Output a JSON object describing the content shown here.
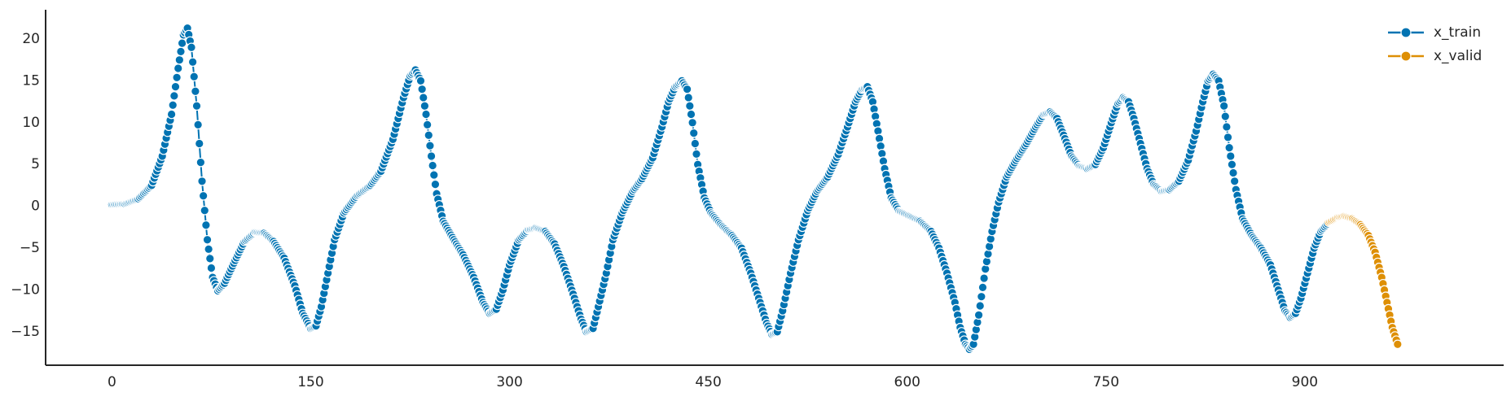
{
  "chart_data": {
    "type": "line",
    "title": "",
    "xlabel": "",
    "ylabel": "",
    "xlim": [
      -50,
      1050
    ],
    "ylim": [
      -19,
      23.5
    ],
    "xticks": [
      0,
      150,
      300,
      450,
      600,
      750,
      900
    ],
    "xtick_labels": [
      "0",
      "150",
      "300",
      "450",
      "600",
      "750",
      "900"
    ],
    "yticks": [
      -15,
      -10,
      -5,
      0,
      5,
      10,
      15,
      20
    ],
    "ytick_labels": [
      "−15",
      "−10",
      "−5",
      "0",
      "5",
      "10",
      "15",
      "20"
    ],
    "grid": false,
    "legend_position": "top-right",
    "marker": "circle",
    "series": [
      {
        "name": "x_train",
        "color": "#0173b2",
        "keypoints": [
          [
            0,
            0.2
          ],
          [
            10,
            0.3
          ],
          [
            20,
            0.9
          ],
          [
            30,
            2.5
          ],
          [
            38,
            6
          ],
          [
            45,
            11
          ],
          [
            50,
            16.5
          ],
          [
            54,
            20.5
          ],
          [
            57,
            21.3
          ],
          [
            60,
            19
          ],
          [
            64,
            12
          ],
          [
            68,
            3
          ],
          [
            72,
            -4
          ],
          [
            76,
            -8.5
          ],
          [
            80,
            -10.1
          ],
          [
            85,
            -9.2
          ],
          [
            92,
            -6.8
          ],
          [
            100,
            -4.2
          ],
          [
            108,
            -3.1
          ],
          [
            115,
            -3.2
          ],
          [
            122,
            -4.2
          ],
          [
            130,
            -6.2
          ],
          [
            138,
            -9.5
          ],
          [
            144,
            -12.8
          ],
          [
            150,
            -14.6
          ],
          [
            154,
            -14.3
          ],
          [
            158,
            -12
          ],
          [
            163,
            -8
          ],
          [
            168,
            -4
          ],
          [
            175,
            -0.8
          ],
          [
            185,
            1.3
          ],
          [
            195,
            2.5
          ],
          [
            203,
            4.2
          ],
          [
            212,
            8
          ],
          [
            220,
            13
          ],
          [
            225,
            15.6
          ],
          [
            229,
            16.3
          ],
          [
            233,
            15
          ],
          [
            237,
            11
          ],
          [
            241,
            6
          ],
          [
            245,
            1.5
          ],
          [
            250,
            -1.8
          ],
          [
            258,
            -4
          ],
          [
            265,
            -5.8
          ],
          [
            273,
            -8.5
          ],
          [
            280,
            -11.5
          ],
          [
            285,
            -12.8
          ],
          [
            290,
            -12.3
          ],
          [
            295,
            -10
          ],
          [
            300,
            -7
          ],
          [
            307,
            -4
          ],
          [
            314,
            -2.8
          ],
          [
            320,
            -2.6
          ],
          [
            327,
            -3
          ],
          [
            334,
            -4.5
          ],
          [
            341,
            -7.2
          ],
          [
            348,
            -10.5
          ],
          [
            354,
            -13.5
          ],
          [
            358,
            -15
          ],
          [
            363,
            -14.6
          ],
          [
            367,
            -12
          ],
          [
            373,
            -8
          ],
          [
            378,
            -4
          ],
          [
            385,
            -0.8
          ],
          [
            393,
            1.8
          ],
          [
            400,
            3.3
          ],
          [
            408,
            5.8
          ],
          [
            415,
            9.5
          ],
          [
            420,
            12.5
          ],
          [
            425,
            14.3
          ],
          [
            430,
            15
          ],
          [
            434,
            14
          ],
          [
            438,
            10
          ],
          [
            442,
            5
          ],
          [
            447,
            1
          ],
          [
            452,
            -0.8
          ],
          [
            460,
            -2.3
          ],
          [
            468,
            -3.5
          ],
          [
            475,
            -5
          ],
          [
            482,
            -8
          ],
          [
            489,
            -11.5
          ],
          [
            494,
            -14
          ],
          [
            498,
            -15.3
          ],
          [
            502,
            -15
          ],
          [
            506,
            -12.5
          ],
          [
            512,
            -8
          ],
          [
            518,
            -4
          ],
          [
            525,
            -0.5
          ],
          [
            532,
            1.8
          ],
          [
            540,
            3.5
          ],
          [
            548,
            6.2
          ],
          [
            555,
            9.5
          ],
          [
            561,
            12.5
          ],
          [
            566,
            14
          ],
          [
            570,
            14.3
          ],
          [
            574,
            12.5
          ],
          [
            578,
            9
          ],
          [
            583,
            4.5
          ],
          [
            588,
            1
          ],
          [
            594,
            -0.6
          ],
          [
            602,
            -1.2
          ],
          [
            610,
            -1.8
          ],
          [
            618,
            -3
          ],
          [
            624,
            -5
          ],
          [
            630,
            -8
          ],
          [
            636,
            -11.5
          ],
          [
            640,
            -14.5
          ],
          [
            644,
            -16.5
          ],
          [
            647,
            -17.1
          ],
          [
            650,
            -16.5
          ],
          [
            654,
            -13
          ],
          [
            659,
            -7.5
          ],
          [
            664,
            -3
          ],
          [
            669,
            0.5
          ],
          [
            675,
            3.5
          ],
          [
            682,
            5.5
          ],
          [
            690,
            7.5
          ],
          [
            697,
            9.5
          ],
          [
            703,
            11
          ],
          [
            708,
            11.3
          ],
          [
            713,
            10.5
          ],
          [
            718,
            8.5
          ],
          [
            724,
            6
          ],
          [
            730,
            4.8
          ],
          [
            736,
            4.5
          ],
          [
            742,
            5
          ],
          [
            748,
            7
          ],
          [
            754,
            10
          ],
          [
            759,
            12.3
          ],
          [
            763,
            13
          ],
          [
            767,
            12.5
          ],
          [
            771,
            10.5
          ],
          [
            776,
            7.5
          ],
          [
            781,
            4.5
          ],
          [
            786,
            2.6
          ],
          [
            792,
            1.8
          ],
          [
            798,
            2
          ],
          [
            805,
            3
          ],
          [
            812,
            5.5
          ],
          [
            818,
            9
          ],
          [
            823,
            12.5
          ],
          [
            827,
            15
          ],
          [
            831,
            15.8
          ],
          [
            835,
            15
          ],
          [
            839,
            12
          ],
          [
            843,
            7
          ],
          [
            848,
            2
          ],
          [
            853,
            -1.5
          ],
          [
            860,
            -3.5
          ],
          [
            867,
            -5
          ],
          [
            874,
            -7
          ],
          [
            880,
            -10
          ],
          [
            885,
            -12.5
          ],
          [
            889,
            -13.3
          ],
          [
            893,
            -12.8
          ],
          [
            897,
            -11
          ],
          [
            902,
            -8
          ],
          [
            907,
            -5
          ],
          [
            912,
            -3
          ],
          [
            918,
            -1.9
          ]
        ]
      },
      {
        "name": "x_valid",
        "color": "#de8f05",
        "keypoints": [
          [
            918,
            -1.9
          ],
          [
            925,
            -1.3
          ],
          [
            930,
            -1.2
          ],
          [
            936,
            -1.5
          ],
          [
            942,
            -2.2
          ],
          [
            948,
            -3.5
          ],
          [
            953,
            -5.5
          ],
          [
            958,
            -8.5
          ],
          [
            962,
            -11.5
          ],
          [
            966,
            -14.5
          ],
          [
            970,
            -16.5
          ]
        ]
      }
    ]
  }
}
